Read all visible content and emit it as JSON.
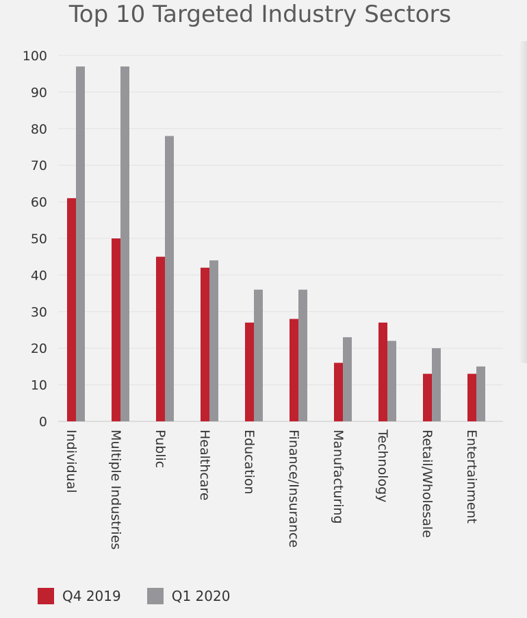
{
  "chart_data": {
    "type": "bar",
    "title": "Top 10 Targeted Industry Sectors",
    "xlabel": "",
    "ylabel": "",
    "ylim": [
      0,
      100
    ],
    "yticks": [
      "0",
      "10",
      "20",
      "30",
      "40",
      "50",
      "60",
      "70",
      "80",
      "90",
      "100"
    ],
    "grid": true,
    "legend_position": "bottom-left",
    "categories": [
      "Individual",
      "Multiple Industries",
      "Public",
      "Healthcare",
      "Education",
      "Finance/Insurance",
      "Manufacturing",
      "Technology",
      "Retail/Wholesale",
      "Entertainment"
    ],
    "series": [
      {
        "name": "Q4 2019",
        "color": "#c0212f",
        "values": [
          61,
          50,
          45,
          42,
          27,
          28,
          16,
          27,
          13,
          13
        ]
      },
      {
        "name": "Q1 2020",
        "color": "#96969a",
        "values": [
          97,
          97,
          78,
          44,
          36,
          36,
          23,
          22,
          20,
          15
        ]
      }
    ]
  }
}
